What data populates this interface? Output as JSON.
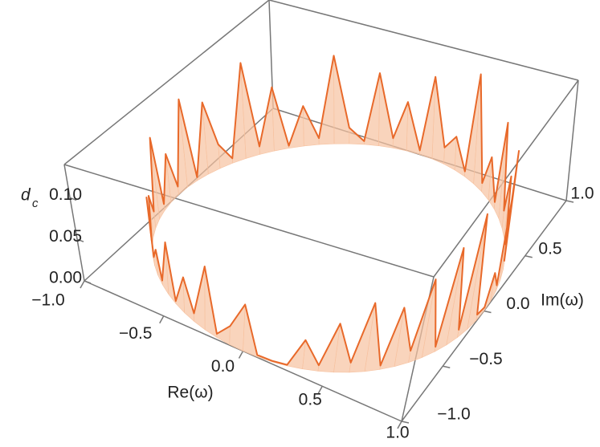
{
  "chart_data": {
    "type": "ribbon3d",
    "xlabel": "Re(ω)",
    "ylabel": "Im(ω)",
    "zlabel": "d",
    "zlabel_subscript": "c",
    "xlim": [
      -1,
      1
    ],
    "ylim": [
      -1,
      1
    ],
    "zlim": [
      0,
      0.14
    ],
    "xticks": [
      {
        "value": -1,
        "label": "−1.0"
      },
      {
        "value": -0.5,
        "label": "−0.5"
      },
      {
        "value": 0,
        "label": "0.0"
      },
      {
        "value": 0.5,
        "label": "0.5"
      },
      {
        "value": 1,
        "label": "1.0"
      }
    ],
    "yticks": [
      {
        "value": -1,
        "label": "−1.0"
      },
      {
        "value": -0.5,
        "label": "−0.5"
      },
      {
        "value": 0,
        "label": "0.0"
      },
      {
        "value": 0.5,
        "label": "0.5"
      },
      {
        "value": 1,
        "label": "1.0"
      }
    ],
    "zticks": [
      {
        "value": 0,
        "label": "0.00"
      },
      {
        "value": 0.05,
        "label": "0.05"
      },
      {
        "value": 0.1,
        "label": "0.10"
      }
    ],
    "line_color": "#e8692a",
    "fill_color": "#f7c2a0",
    "theta": [
      0,
      5,
      10,
      15,
      20,
      25,
      30,
      35,
      40,
      45,
      50,
      55,
      60,
      65,
      70,
      75,
      80,
      85,
      90,
      95,
      100,
      105,
      110,
      115,
      120,
      125,
      130,
      135,
      140,
      145,
      150,
      155,
      160,
      165,
      170,
      175,
      180,
      185,
      190,
      195,
      200,
      205,
      210,
      215,
      220,
      225,
      230,
      235,
      240,
      245,
      250,
      255,
      260,
      265,
      270,
      275,
      280,
      285,
      290,
      295,
      300,
      305,
      310,
      315,
      320,
      325,
      330,
      335,
      340,
      345,
      350,
      355
    ],
    "values": [
      0.004,
      0.03,
      0.006,
      0.09,
      0.01,
      0.12,
      0.005,
      0.07,
      0.02,
      0.11,
      0.008,
      0.05,
      0.01,
      0.13,
      0.006,
      0.04,
      0.02,
      0.1,
      0.005,
      0.06,
      0.012,
      0.09,
      0.004,
      0.02,
      0.11,
      0.008,
      0.05,
      0.003,
      0.08,
      0.01,
      0.12,
      0.006,
      0.03,
      0.09,
      0.004,
      0.11,
      0.01,
      0.06,
      0.008,
      0.1,
      0.02,
      0.05,
      0.006,
      0.07,
      0.01,
      0.03,
      0.005,
      0.06,
      0.003,
      0.04,
      0.009,
      0.07,
      0.004,
      0.02,
      0.05,
      0.002,
      0.001,
      0.001,
      0.03,
      0.006,
      0.05,
      0.01,
      0.07,
      0.004,
      0.06,
      0.012,
      0.08,
      0.005,
      0.1,
      0.008,
      0.12,
      0.006
    ]
  }
}
